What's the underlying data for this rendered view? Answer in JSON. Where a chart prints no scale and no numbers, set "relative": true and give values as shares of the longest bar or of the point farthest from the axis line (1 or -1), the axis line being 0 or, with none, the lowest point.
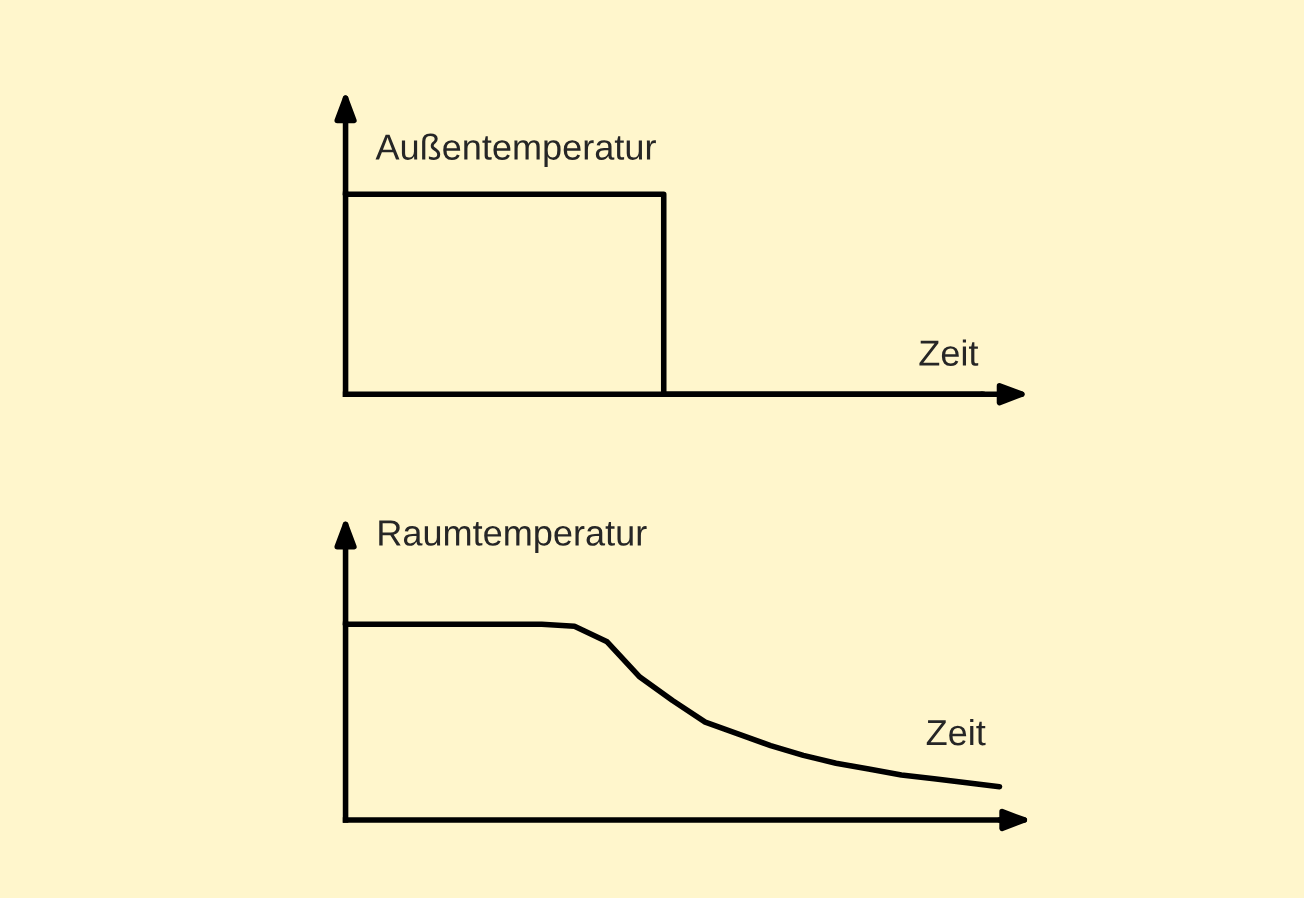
{
  "chart_data": [
    {
      "type": "step",
      "relative": true,
      "ylabel": "Außentemperatur",
      "xlabel": "Zeit",
      "color": "#000000",
      "categories": [
        null,
        null,
        null,
        null,
        null,
        null,
        null,
        null,
        null,
        null,
        null,
        null,
        null,
        null,
        null,
        null,
        null,
        null,
        null,
        null,
        null
      ],
      "values": [
        1,
        1,
        1,
        1,
        1,
        1,
        1,
        1,
        1,
        1,
        0,
        0,
        0,
        0,
        0,
        0,
        0,
        0,
        0,
        0,
        0
      ]
    },
    {
      "type": "line",
      "relative": true,
      "ylabel": "Raumtemperatur",
      "xlabel": "Zeit",
      "color": "#000000",
      "categories": [
        null,
        null,
        null,
        null,
        null,
        null,
        null,
        null,
        null,
        null,
        null,
        null,
        null,
        null,
        null,
        null,
        null,
        null,
        null,
        null,
        null
      ],
      "values": [
        1,
        1,
        1,
        1,
        1,
        1,
        1,
        0.99,
        0.91,
        0.73,
        0.61,
        0.5,
        0.44,
        0.38,
        0.33,
        0.29,
        0.26,
        0.23,
        0.21,
        0.19,
        0.17
      ]
    }
  ]
}
